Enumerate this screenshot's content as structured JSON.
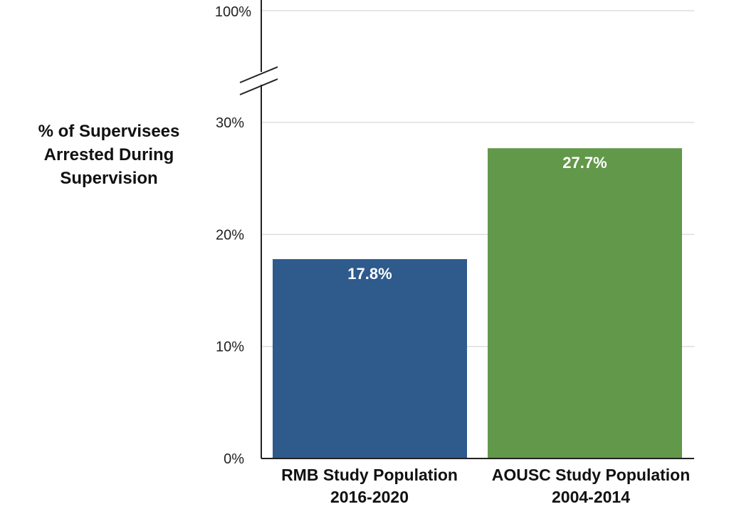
{
  "chart_data": {
    "type": "bar",
    "title": "",
    "ylabel": [
      "% of Supervisees",
      "Arrested During",
      "Supervision"
    ],
    "xlabel": "",
    "categories": [
      {
        "line1": "RMB Study Population",
        "line2": "2016-2020"
      },
      {
        "line1": "AOUSC Study Population",
        "line2": "2004-2014"
      }
    ],
    "values": [
      17.8,
      27.7
    ],
    "value_labels": [
      "17.8%",
      "27.7%"
    ],
    "bar_colors": [
      "#2e5a8c",
      "#62984a"
    ],
    "ylim": [
      0,
      100
    ],
    "axis_break": [
      30,
      100
    ],
    "lower_ticks": [
      0,
      10,
      20,
      30
    ],
    "lower_tick_labels": [
      "0%",
      "10%",
      "20%",
      "30%"
    ],
    "upper_ticks": [
      100
    ],
    "upper_tick_labels": [
      "100%"
    ],
    "grid": true,
    "grid_color": "#dddddd",
    "axis_color": "#222222"
  }
}
